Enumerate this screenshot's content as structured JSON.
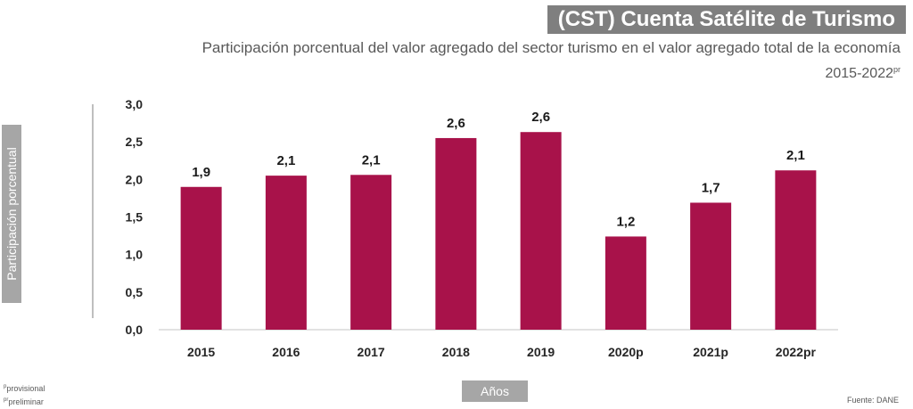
{
  "header": {
    "title": "(CST) Cuenta Satélite de Turismo",
    "subtitle": "Participación porcentual del valor agregado del sector turismo en el valor agregado total de la economía",
    "period": "2015-2022",
    "period_sup": "pr"
  },
  "footer": {
    "note_p_sup": "p",
    "note_p": "provisional",
    "note_pr_sup": "pr",
    "note_pr": "preliminar",
    "source": "Fuente: DANE"
  },
  "chart_data": {
    "type": "bar",
    "categories": [
      "2015",
      "2016",
      "2017",
      "2018",
      "2019",
      "2020p",
      "2021p",
      "2022pr"
    ],
    "values": [
      1.9,
      2.05,
      2.06,
      2.55,
      2.63,
      1.24,
      1.69,
      2.12
    ],
    "data_labels": [
      "1,9",
      "2,1",
      "2,1",
      "2,6",
      "2,6",
      "1,2",
      "1,7",
      "2,1"
    ],
    "yticks": [
      "0,0",
      "0,5",
      "1,0",
      "1,5",
      "2,0",
      "2,5",
      "3,0"
    ],
    "ylim": [
      0,
      3
    ],
    "ylabel": "Participación porcentual",
    "xlabel": "Años",
    "grid": false,
    "bar_color": "#a8124a"
  }
}
